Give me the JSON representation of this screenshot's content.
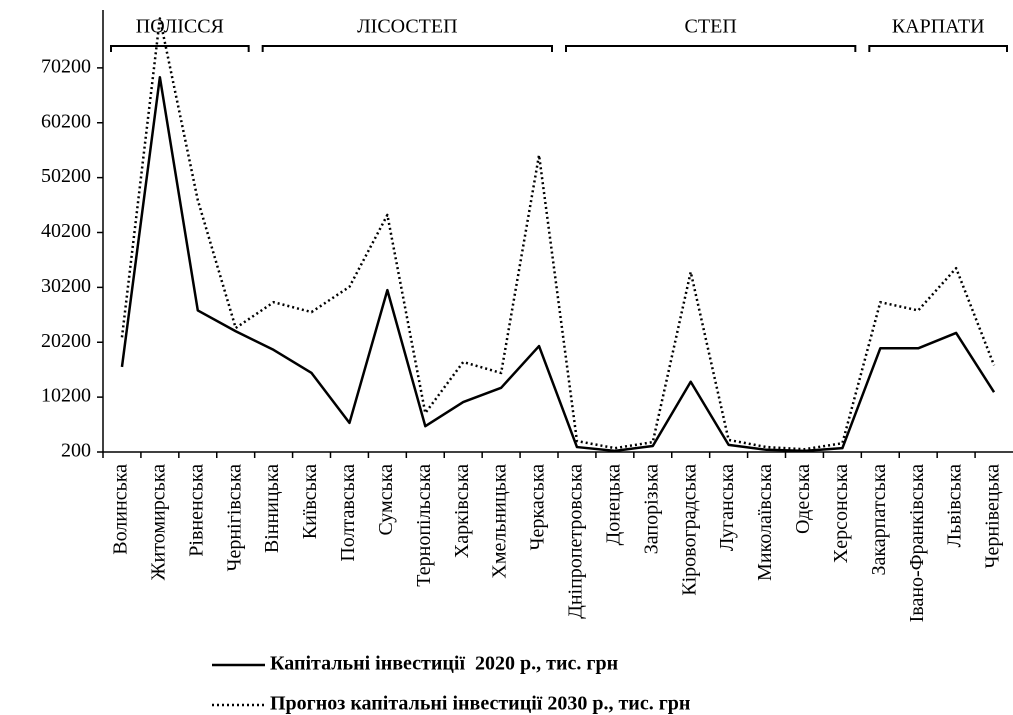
{
  "chart_data": {
    "type": "line",
    "categories": [
      "Волинська",
      "Житомирська",
      "Рівненська",
      "Чернігівська",
      "Вінницька",
      "Київська",
      "Полтавська",
      "Сумська",
      "Тернопільська",
      "Харківська",
      "Хмельницька",
      "Черкаська",
      "Дніпропетровська",
      "Донецька",
      "Запорізька",
      "Кіровоградська",
      "Луганська",
      "Миколаївська",
      "Одеська",
      "Херсонська",
      "Закарпатська",
      "Івано-Франківська",
      "Львівська",
      "Чернівецька"
    ],
    "series": [
      {
        "name": "Капітальні інвестиції  2020 р., тис. грн",
        "color": "#000000",
        "dash": "solid",
        "values": [
          15700,
          68500,
          26000,
          22200,
          18800,
          14600,
          5500,
          29700,
          4900,
          9300,
          11900,
          19500,
          1100,
          400,
          1300,
          13000,
          1500,
          600,
          400,
          900,
          19100,
          19100,
          21900,
          11100
        ]
      },
      {
        "name": "Прогноз капітальні інвестиції 2030 р., тис. грн",
        "color": "#000000",
        "dash": "dotted",
        "values": [
          21100,
          79200,
          46100,
          22800,
          27500,
          25700,
          30300,
          43400,
          7300,
          16600,
          14600,
          54300,
          2200,
          900,
          2000,
          33000,
          2400,
          1100,
          700,
          1800,
          27500,
          26000,
          33700,
          16000
        ]
      }
    ],
    "regions": [
      {
        "label": "ПОЛІССЯ",
        "first": "Волинська",
        "last": "Чернігівська"
      },
      {
        "label": "ЛІСОСТЕП",
        "first": "Вінницька",
        "last": "Черкаська"
      },
      {
        "label": "СТЕП",
        "first": "Дніпропетровська",
        "last": "Херсонська"
      },
      {
        "label": "КАРПАТИ",
        "first": "Закарпатська",
        "last": "Чернівецька"
      }
    ],
    "ylim": [
      200,
      80200
    ],
    "yticks": [
      200,
      10200,
      20200,
      30200,
      40200,
      50200,
      60200,
      70200
    ],
    "grid": false,
    "legend": "bottom"
  }
}
